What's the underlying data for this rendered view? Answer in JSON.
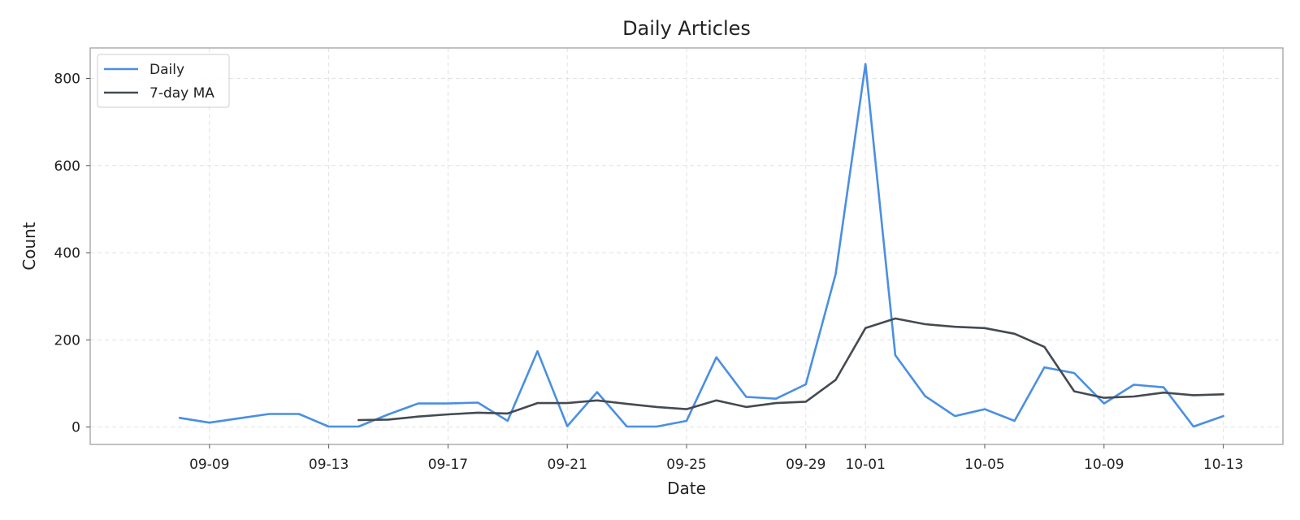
{
  "chart_data": {
    "type": "line",
    "title": "Daily Articles",
    "xlabel": "Date",
    "ylabel": "Count",
    "x_range": [
      "2025-09-05",
      "2025-10-15"
    ],
    "ylim": [
      -40,
      870
    ],
    "grid": true,
    "legend_position": "top-left",
    "x_ticks": [
      "09-09",
      "09-13",
      "09-17",
      "09-21",
      "09-25",
      "09-29",
      "10-01",
      "10-05",
      "10-09",
      "10-13"
    ],
    "x_tick_dates": [
      "2025-09-09",
      "2025-09-13",
      "2025-09-17",
      "2025-09-21",
      "2025-09-25",
      "2025-09-29",
      "2025-10-01",
      "2025-10-05",
      "2025-10-09",
      "2025-10-13"
    ],
    "y_ticks": [
      "0",
      "200",
      "400",
      "600",
      "800"
    ],
    "y_tick_values": [
      0,
      200,
      400,
      600,
      800
    ],
    "series": [
      {
        "name": "Daily",
        "color": "#4a8fe2",
        "x": [
          "2025-09-08",
          "2025-09-09",
          "2025-09-10",
          "2025-09-11",
          "2025-09-12",
          "2025-09-13",
          "2025-09-14",
          "2025-09-15",
          "2025-09-16",
          "2025-09-17",
          "2025-09-18",
          "2025-09-19",
          "2025-09-20",
          "2025-09-21",
          "2025-09-22",
          "2025-09-23",
          "2025-09-24",
          "2025-09-25",
          "2025-09-26",
          "2025-09-27",
          "2025-09-28",
          "2025-09-29",
          "2025-09-30",
          "2025-10-01",
          "2025-10-02",
          "2025-10-03",
          "2025-10-04",
          "2025-10-05",
          "2025-10-06",
          "2025-10-07",
          "2025-10-08",
          "2025-10-09",
          "2025-10-10",
          "2025-10-11",
          "2025-10-12",
          "2025-10-13"
        ],
        "y": [
          21,
          10,
          20,
          30,
          30,
          1,
          1,
          29,
          54,
          54,
          56,
          14,
          174,
          2,
          80,
          1,
          1,
          14,
          160,
          69,
          65,
          98,
          351,
          833,
          165,
          71,
          25,
          41,
          14,
          137,
          124,
          54,
          97,
          91,
          1,
          25
        ]
      },
      {
        "name": "7-day MA",
        "color": "#454a51",
        "x": [
          "2025-09-14",
          "2025-09-15",
          "2025-09-16",
          "2025-09-17",
          "2025-09-18",
          "2025-09-19",
          "2025-09-20",
          "2025-09-21",
          "2025-09-22",
          "2025-09-23",
          "2025-09-24",
          "2025-09-25",
          "2025-09-26",
          "2025-09-27",
          "2025-09-28",
          "2025-09-29",
          "2025-09-30",
          "2025-10-01",
          "2025-10-02",
          "2025-10-03",
          "2025-10-04",
          "2025-10-05",
          "2025-10-06",
          "2025-10-07",
          "2025-10-08",
          "2025-10-09",
          "2025-10-10",
          "2025-10-11",
          "2025-10-12",
          "2025-10-13"
        ],
        "y": [
          16,
          17,
          24,
          29,
          33,
          31,
          55,
          55,
          61,
          53,
          46,
          41,
          61,
          46,
          55,
          58,
          108,
          227,
          249,
          236,
          230,
          227,
          214,
          184,
          82,
          67,
          70,
          79,
          73,
          75
        ]
      }
    ]
  }
}
